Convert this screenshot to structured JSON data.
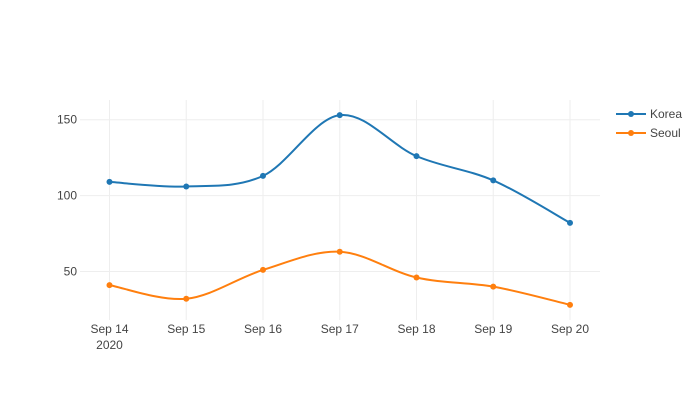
{
  "chart_data": {
    "type": "line",
    "title": "",
    "xlabel": "",
    "ylabel": "",
    "x": [
      "2020-09-14",
      "2020-09-15",
      "2020-09-16",
      "2020-09-17",
      "2020-09-18",
      "2020-09-19",
      "2020-09-20"
    ],
    "x_tick_labels": [
      "Sep 14",
      "Sep 15",
      "Sep 16",
      "Sep 17",
      "Sep 18",
      "Sep 19",
      "Sep 20"
    ],
    "x_year_label": "2020",
    "y_ticks": [
      50,
      100,
      150
    ],
    "ylim": [
      18,
      163
    ],
    "grid": true,
    "legend_position": "top-right",
    "line_shape": "spline",
    "series": [
      {
        "name": "Korea",
        "color": "#1f77b4",
        "values": [
          109,
          106,
          113,
          153,
          126,
          110,
          82
        ]
      },
      {
        "name": "Seoul",
        "color": "#ff7f0e",
        "values": [
          41,
          32,
          51,
          63,
          46,
          40,
          28
        ]
      }
    ]
  }
}
